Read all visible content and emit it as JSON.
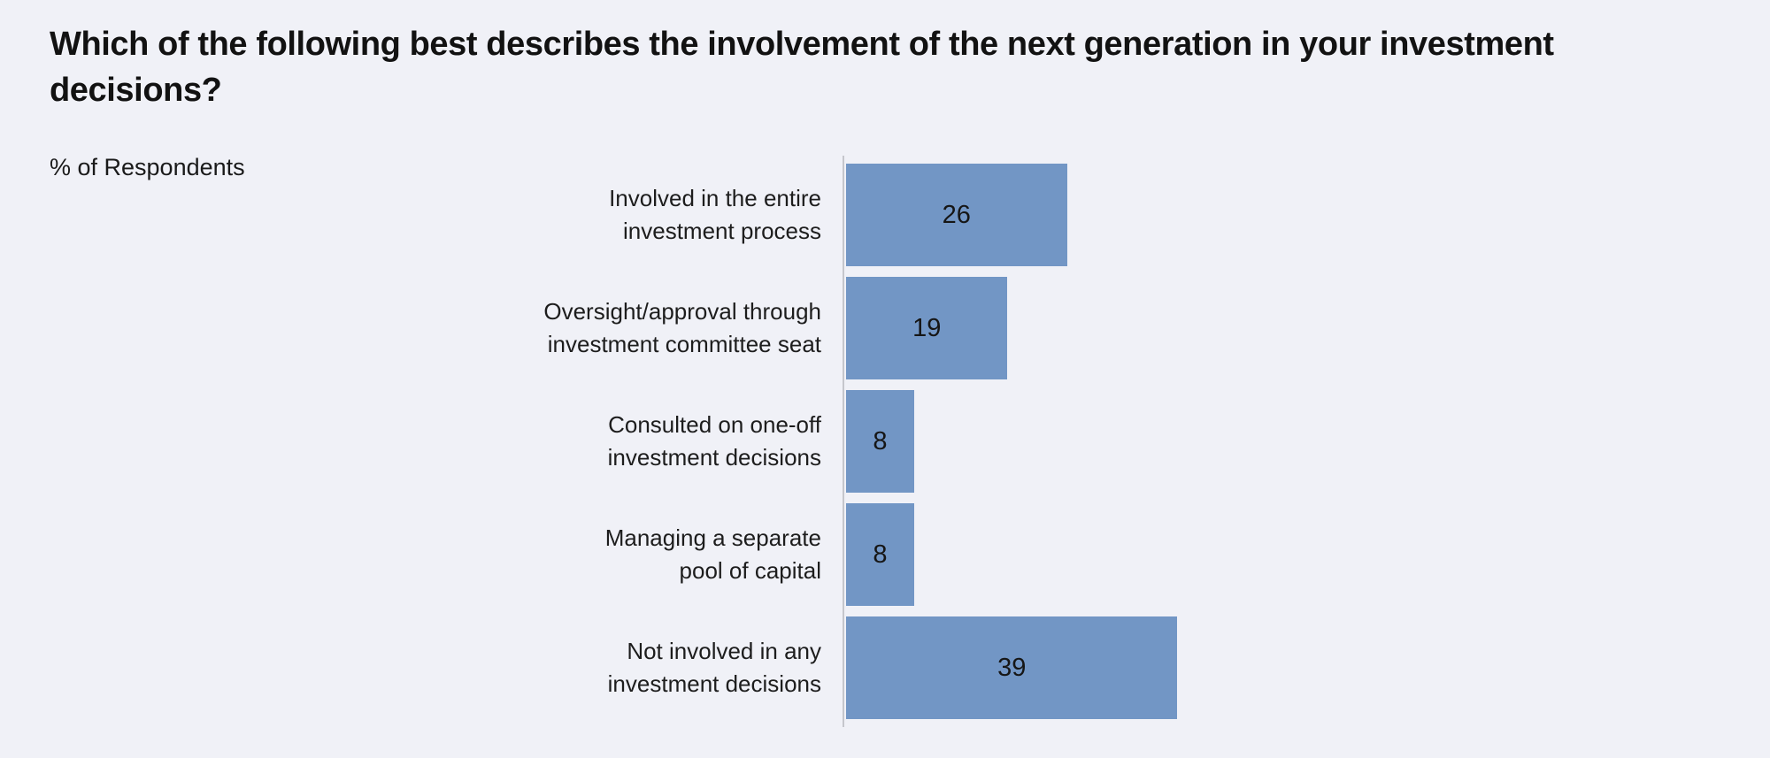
{
  "chart_data": {
    "type": "bar",
    "orientation": "horizontal",
    "title": "Which of the following best describes the involvement of the next generation in your investment decisions?",
    "units_label": "% of Respondents",
    "categories": [
      "Involved in the entire\ninvestment process",
      "Oversight/approval through\ninvestment committee seat",
      "Consulted on one-off\ninvestment decisions",
      "Managing a separate\npool of capital",
      "Not involved in any\ninvestment decisions"
    ],
    "values": [
      26,
      19,
      8,
      8,
      39
    ],
    "value_labels": [
      "26",
      "19",
      "8",
      "8",
      "39"
    ],
    "xlim": [
      0,
      100
    ],
    "grid": false,
    "legend": "none",
    "value_label_position": "center-of-bar",
    "colors": {
      "bar": "#7296C5",
      "background": "#F0F1F7",
      "axis_line": "#c5c6cc",
      "text": "#121212"
    }
  }
}
